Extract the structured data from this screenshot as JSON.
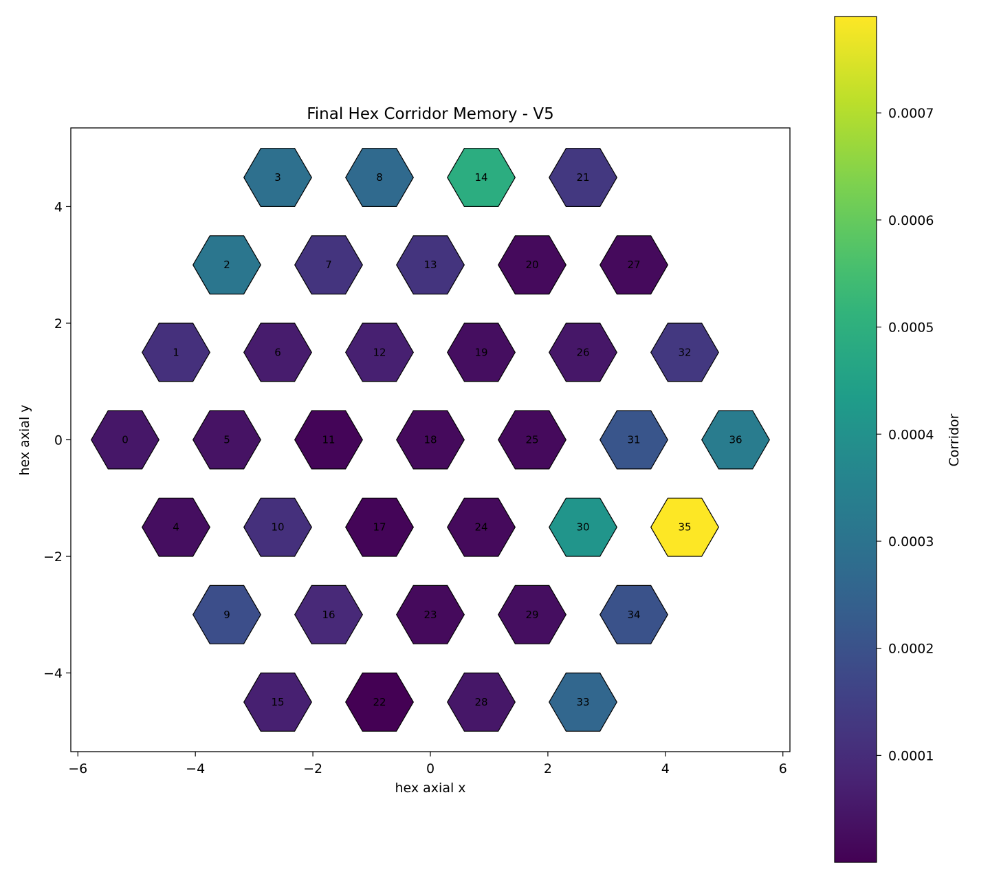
{
  "chart_data": {
    "type": "heatmap",
    "title": "Final Hex Corridor Memory - V5",
    "xlabel": "hex axial x",
    "ylabel": "hex axial y",
    "xlim": [
      -6.12,
      6.12
    ],
    "ylim": [
      -5.35,
      5.35
    ],
    "xticks": [
      -6,
      -4,
      -2,
      0,
      2,
      4,
      6
    ],
    "yticks": [
      -4,
      -2,
      0,
      2,
      4
    ],
    "colorbar": {
      "label": "Corridor",
      "colormap": "viridis",
      "range": [
        1e-07,
        0.00079
      ],
      "ticks": [
        0.0001,
        0.0002,
        0.0003,
        0.0004,
        0.0005,
        0.0006,
        0.0007
      ],
      "tick_labels": [
        "0.0001",
        "0.0002",
        "0.0003",
        "0.0004",
        "0.0005",
        "0.0006",
        "0.0007"
      ]
    },
    "cells": [
      {
        "id": "0",
        "x": -5.196,
        "y": 0.0,
        "value": 5e-05
      },
      {
        "id": "1",
        "x": -4.33,
        "y": 1.5,
        "value": 0.00011
      },
      {
        "id": "2",
        "x": -3.464,
        "y": 3.0,
        "value": 0.00031
      },
      {
        "id": "3",
        "x": -2.598,
        "y": 4.5,
        "value": 0.00029
      },
      {
        "id": "4",
        "x": -4.33,
        "y": -1.5,
        "value": 3e-05
      },
      {
        "id": "5",
        "x": -3.464,
        "y": 0.0,
        "value": 4e-05
      },
      {
        "id": "6",
        "x": -2.598,
        "y": 1.5,
        "value": 6e-05
      },
      {
        "id": "7",
        "x": -1.732,
        "y": 3.0,
        "value": 0.00012
      },
      {
        "id": "8",
        "x": -0.866,
        "y": 4.5,
        "value": 0.00027
      },
      {
        "id": "9",
        "x": -3.464,
        "y": -3.0,
        "value": 0.00019
      },
      {
        "id": "10",
        "x": -2.598,
        "y": -1.5,
        "value": 0.00011
      },
      {
        "id": "11",
        "x": -1.732,
        "y": 0.0,
        "value": 1e-05
      },
      {
        "id": "12",
        "x": -0.866,
        "y": 1.5,
        "value": 7e-05
      },
      {
        "id": "13",
        "x": 0.0,
        "y": 3.0,
        "value": 0.00012
      },
      {
        "id": "14",
        "x": 0.866,
        "y": 4.5,
        "value": 0.00049
      },
      {
        "id": "15",
        "x": -2.598,
        "y": -4.5,
        "value": 7e-05
      },
      {
        "id": "16",
        "x": -1.732,
        "y": -3.0,
        "value": 9e-05
      },
      {
        "id": "17",
        "x": -0.866,
        "y": -1.5,
        "value": 1e-05
      },
      {
        "id": "18",
        "x": 0.0,
        "y": 0.0,
        "value": 2e-05
      },
      {
        "id": "19",
        "x": 0.866,
        "y": 1.5,
        "value": 3e-05
      },
      {
        "id": "20",
        "x": 1.732,
        "y": 3.0,
        "value": 2e-05
      },
      {
        "id": "21",
        "x": 2.598,
        "y": 4.5,
        "value": 0.00013
      },
      {
        "id": "22",
        "x": -0.866,
        "y": -4.5,
        "value": 1e-07
      },
      {
        "id": "23",
        "x": 0.0,
        "y": -3.0,
        "value": 2e-05
      },
      {
        "id": "24",
        "x": 0.866,
        "y": -1.5,
        "value": 2e-05
      },
      {
        "id": "25",
        "x": 1.732,
        "y": 0.0,
        "value": 2e-05
      },
      {
        "id": "26",
        "x": 2.598,
        "y": 1.5,
        "value": 5e-05
      },
      {
        "id": "27",
        "x": 3.464,
        "y": 3.0,
        "value": 2e-05
      },
      {
        "id": "28",
        "x": 0.866,
        "y": -4.5,
        "value": 5e-05
      },
      {
        "id": "29",
        "x": 1.732,
        "y": -3.0,
        "value": 3e-05
      },
      {
        "id": "30",
        "x": 2.598,
        "y": -1.5,
        "value": 0.00041
      },
      {
        "id": "31",
        "x": 3.464,
        "y": 0.0,
        "value": 0.00021
      },
      {
        "id": "32",
        "x": 4.33,
        "y": 1.5,
        "value": 0.00013
      },
      {
        "id": "33",
        "x": 2.598,
        "y": -4.5,
        "value": 0.00026
      },
      {
        "id": "34",
        "x": 3.464,
        "y": -3.0,
        "value": 0.0002
      },
      {
        "id": "35",
        "x": 4.33,
        "y": -1.5,
        "value": 0.00079
      },
      {
        "id": "36",
        "x": 5.196,
        "y": 0.0,
        "value": 0.00033
      }
    ]
  }
}
